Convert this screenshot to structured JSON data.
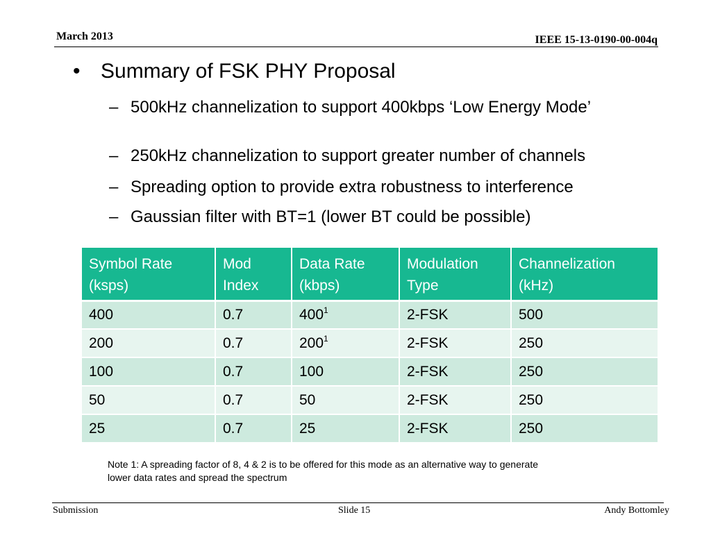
{
  "header": {
    "date": "March 2013",
    "doc_id": "IEEE 15-13-0190-00-004q"
  },
  "content": {
    "title_bullet": "Summary of FSK PHY Proposal",
    "bullet_mark": "•",
    "dash_mark": "–",
    "sub_bullets": [
      "500kHz channelization to support 400kbps ‘Low Energy Mode’",
      "250kHz channelization to support greater number of channels",
      "Spreading option to provide extra robustness to interference",
      "Gaussian filter with BT=1 (lower BT could  be possible)"
    ]
  },
  "table": {
    "headers": [
      [
        "Symbol Rate",
        "(ksps)"
      ],
      [
        "Mod",
        "Index"
      ],
      [
        "Data Rate",
        "(kbps)"
      ],
      [
        "Modulation",
        "Type"
      ],
      [
        "Channelization",
        "(kHz)"
      ]
    ],
    "rows": [
      [
        "400",
        "0.7",
        "400",
        "2-FSK",
        "500"
      ],
      [
        "200",
        "0.7",
        "200",
        "2-FSK",
        "250"
      ],
      [
        "100",
        "0.7",
        "100",
        "2-FSK",
        "250"
      ],
      [
        "50",
        "0.7",
        "50",
        "2-FSK",
        "250"
      ],
      [
        "25",
        "0.7",
        "25",
        "2-FSK",
        "250"
      ]
    ],
    "footnote_marker": "1",
    "header_color": "#17b891",
    "row_colors": [
      "#cdeade",
      "#e7f5ef"
    ]
  },
  "note": "Note 1: A spreading factor of 8, 4 & 2 is to be offered for this mode as an alternative way to generate lower data rates and spread the spectrum",
  "footer": {
    "left": "Submission",
    "center": "Slide 15",
    "right": "Andy Bottomley"
  }
}
